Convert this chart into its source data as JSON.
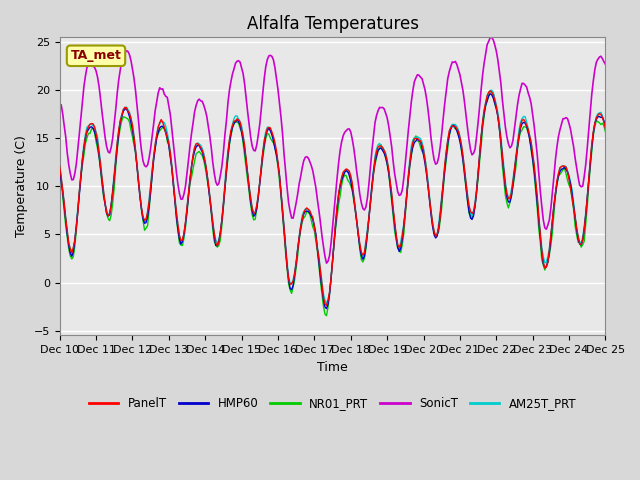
{
  "title": "Alfalfa Temperatures",
  "xlabel": "Time",
  "ylabel": "Temperature (C)",
  "xlim": [
    0,
    360
  ],
  "ylim": [
    -5.5,
    25.5
  ],
  "yticks": [
    -5,
    0,
    5,
    10,
    15,
    20,
    25
  ],
  "xtick_labels": [
    "Dec 10",
    "Dec 11",
    "Dec 12",
    "Dec 13",
    "Dec 14",
    "Dec 15",
    "Dec 16",
    "Dec 17",
    "Dec 18",
    "Dec 19",
    "Dec 20",
    "Dec 21",
    "Dec 22",
    "Dec 23",
    "Dec 24",
    "Dec 25"
  ],
  "xtick_positions": [
    0,
    24,
    48,
    72,
    96,
    120,
    144,
    168,
    192,
    216,
    240,
    264,
    288,
    312,
    336,
    360
  ],
  "colors": {
    "PanelT": "#ff0000",
    "HMP60": "#0000cc",
    "NR01_PRT": "#00cc00",
    "SonicT": "#cc00cc",
    "AM25T_PRT": "#00cccc"
  },
  "annotation_text": "TA_met",
  "annotation_color": "#8B0000",
  "annotation_bg": "#ffffaa",
  "plot_bg": "#e8e8e8",
  "grid_color": "#ffffff",
  "title_fontsize": 12,
  "axis_fontsize": 9,
  "tick_fontsize": 8
}
